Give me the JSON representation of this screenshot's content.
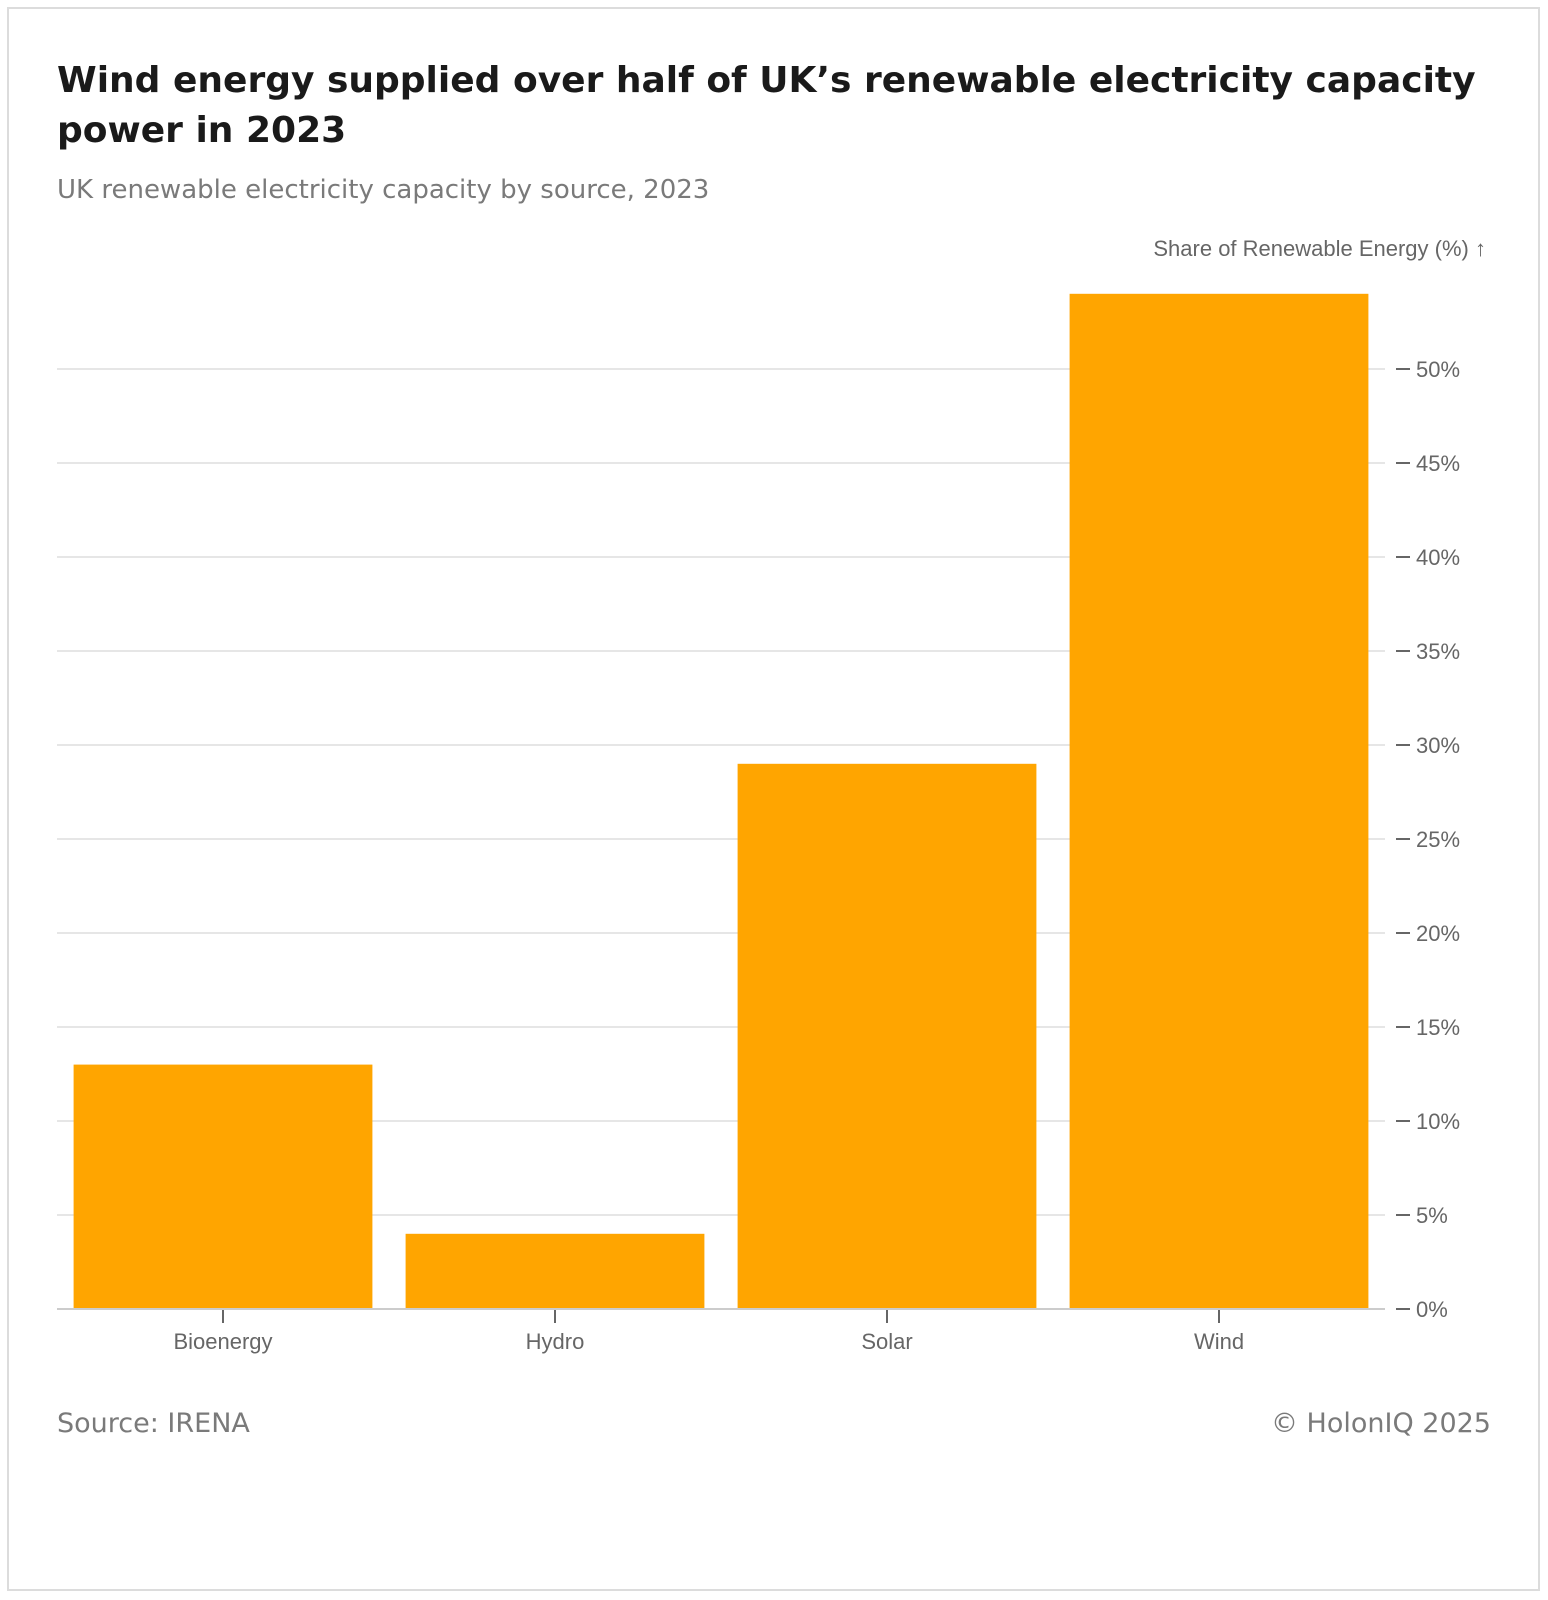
{
  "chart_data": {
    "type": "bar",
    "title": "Wind energy supplied over half of UK’s renewable electricity capacity power in 2023",
    "subtitle": "UK renewable electricity capacity by source, 2023",
    "ylabel": "Share of Renewable Energy (%) ↑",
    "xlabel": "",
    "categories": [
      "Bioenergy",
      "Hydro",
      "Solar",
      "Wind"
    ],
    "values": [
      13,
      4,
      29,
      54
    ],
    "ylim": [
      0,
      55
    ],
    "yticks": [
      0,
      5,
      10,
      15,
      20,
      25,
      30,
      35,
      40,
      45,
      50
    ],
    "ytick_labels": [
      "0%",
      "5%",
      "10%",
      "15%",
      "20%",
      "25%",
      "30%",
      "35%",
      "40%",
      "45%",
      "50%"
    ],
    "bar_color": "#FFA500",
    "grid": true,
    "y_axis_side": "right"
  },
  "footer": {
    "source": "Source: IRENA",
    "copyright": "© HolonIQ 2025"
  },
  "colors": {
    "title": "#1a1a1a",
    "muted": "#7a7a7a",
    "gridline": "#e6e6e6",
    "axis": "#666666"
  }
}
